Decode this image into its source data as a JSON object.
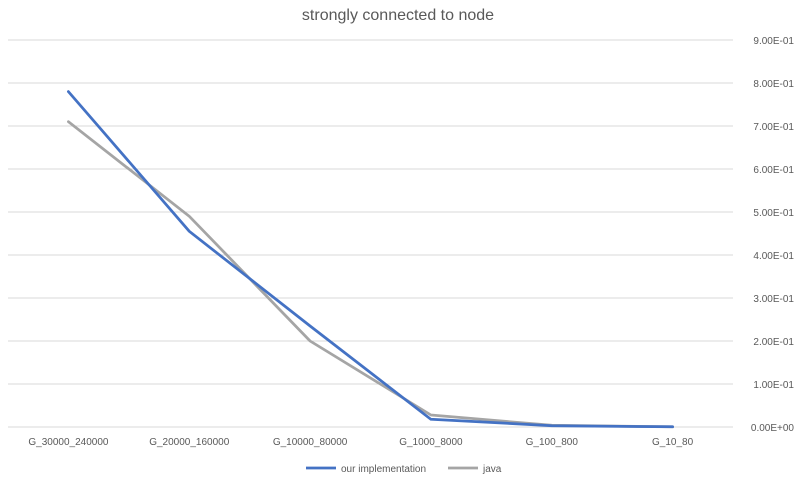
{
  "chart_data": {
    "type": "line",
    "title": "strongly connected to node",
    "xlabel": "",
    "ylabel": "",
    "categories": [
      "G_30000_240000",
      "G_20000_160000",
      "G_10000_80000",
      "G_1000_8000",
      "G_100_800",
      "G_10_80"
    ],
    "series": [
      {
        "name": "our implementation",
        "color": "#4472c4",
        "values": [
          0.78,
          0.455,
          0.235,
          0.018,
          0.003,
          0.0005
        ]
      },
      {
        "name": "java",
        "color": "#a5a5a5",
        "values": [
          0.71,
          0.49,
          0.2,
          0.028,
          0.004,
          0.0005
        ]
      }
    ],
    "ylim": [
      0,
      0.9
    ],
    "yticks": [
      "0.00E+00",
      "1.00E-01",
      "2.00E-01",
      "3.00E-01",
      "4.00E-01",
      "5.00E-01",
      "6.00E-01",
      "7.00E-01",
      "8.00E-01",
      "9.00E-01"
    ],
    "y_axis_side": "right",
    "grid": true,
    "legend_position": "bottom"
  }
}
